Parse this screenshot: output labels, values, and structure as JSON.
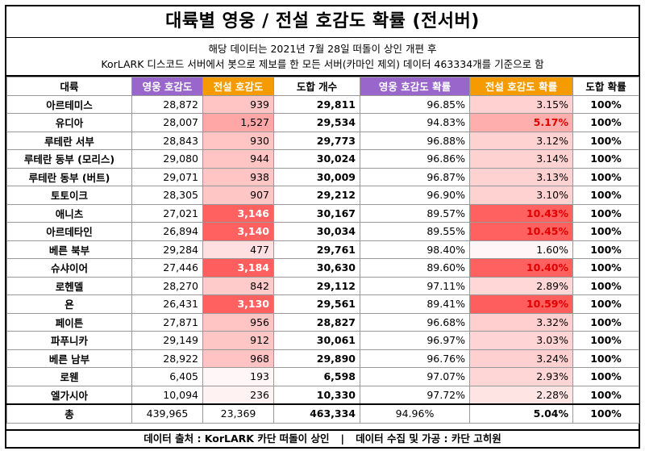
{
  "title": "대륙별 영웅 / 전설 호감도 확률 (전서버)",
  "subtitle_1": "해당 데이터는 2021년 7월 28일 떠돌이 상인 개편 후",
  "subtitle_2": "KorLARK 디스코드 서버에서 봇으로 제보를 한 모든 서버(카마인 제외) 데이터 463334개를 기준으로 함",
  "headers": {
    "region": "대륙",
    "hero_count": "영웅 호감도",
    "legend_count": "전설 호감도",
    "total": "도합 개수",
    "hero_rate": "영웅 호감도 확률",
    "legend_rate": "전설 호감도 확률",
    "total_rate": "도합 확률"
  },
  "colors": {
    "purple": "#9966cc",
    "orange": "#f59b00",
    "highlight_red": "#ff5e5e",
    "text_red": "#e00000"
  },
  "rows": [
    {
      "region": "아르테미스",
      "hero": "28,872",
      "legend": "939",
      "total": "29,811",
      "hero_rate": "96.85%",
      "legend_rate": "3.15%",
      "total_rate": "100%"
    },
    {
      "region": "유디아",
      "hero": "28,007",
      "legend": "1,527",
      "total": "29,534",
      "hero_rate": "94.83%",
      "legend_rate": "5.17%",
      "total_rate": "100%"
    },
    {
      "region": "루테란 서부",
      "hero": "28,843",
      "legend": "930",
      "total": "29,773",
      "hero_rate": "96.88%",
      "legend_rate": "3.12%",
      "total_rate": "100%"
    },
    {
      "region": "루테란 동부 (모리스)",
      "hero": "29,080",
      "legend": "944",
      "total": "30,024",
      "hero_rate": "96.86%",
      "legend_rate": "3.14%",
      "total_rate": "100%"
    },
    {
      "region": "루테란 동부 (버트)",
      "hero": "29,071",
      "legend": "938",
      "total": "30,009",
      "hero_rate": "96.87%",
      "legend_rate": "3.13%",
      "total_rate": "100%"
    },
    {
      "region": "토토이크",
      "hero": "28,305",
      "legend": "907",
      "total": "29,212",
      "hero_rate": "96.90%",
      "legend_rate": "3.10%",
      "total_rate": "100%"
    },
    {
      "region": "애니츠",
      "hero": "27,021",
      "legend": "3,146",
      "total": "30,167",
      "hero_rate": "89.57%",
      "legend_rate": "10.43%",
      "total_rate": "100%"
    },
    {
      "region": "아르데타인",
      "hero": "26,894",
      "legend": "3,140",
      "total": "30,034",
      "hero_rate": "89.55%",
      "legend_rate": "10.45%",
      "total_rate": "100%"
    },
    {
      "region": "베른 북부",
      "hero": "29,284",
      "legend": "477",
      "total": "29,761",
      "hero_rate": "98.40%",
      "legend_rate": "1.60%",
      "total_rate": "100%"
    },
    {
      "region": "슈샤이어",
      "hero": "27,446",
      "legend": "3,184",
      "total": "30,630",
      "hero_rate": "89.60%",
      "legend_rate": "10.40%",
      "total_rate": "100%"
    },
    {
      "region": "로헨델",
      "hero": "28,270",
      "legend": "842",
      "total": "29,112",
      "hero_rate": "97.11%",
      "legend_rate": "2.89%",
      "total_rate": "100%"
    },
    {
      "region": "욘",
      "hero": "26,431",
      "legend": "3,130",
      "total": "29,561",
      "hero_rate": "89.41%",
      "legend_rate": "10.59%",
      "total_rate": "100%"
    },
    {
      "region": "페이튼",
      "hero": "27,871",
      "legend": "956",
      "total": "28,827",
      "hero_rate": "96.68%",
      "legend_rate": "3.32%",
      "total_rate": "100%"
    },
    {
      "region": "파푸니카",
      "hero": "29,149",
      "legend": "912",
      "total": "30,061",
      "hero_rate": "96.97%",
      "legend_rate": "3.03%",
      "total_rate": "100%"
    },
    {
      "region": "베른 남부",
      "hero": "28,922",
      "legend": "968",
      "total": "29,890",
      "hero_rate": "96.76%",
      "legend_rate": "3.24%",
      "total_rate": "100%"
    },
    {
      "region": "로웬",
      "hero": "6,405",
      "legend": "193",
      "total": "6,598",
      "hero_rate": "97.07%",
      "legend_rate": "2.93%",
      "total_rate": "100%"
    },
    {
      "region": "엘가시아",
      "hero": "10,094",
      "legend": "236",
      "total": "10,330",
      "hero_rate": "97.72%",
      "legend_rate": "2.28%",
      "total_rate": "100%"
    }
  ],
  "total_row": {
    "region": "총",
    "hero": "439,965",
    "legend": "23,369",
    "total": "463,334",
    "hero_rate": "94.96%",
    "legend_rate": "5.04%",
    "total_rate": "100%"
  },
  "footer": {
    "source": "데이터 출처 : KorLARK 카단 떠돌이 상인",
    "separator": "|",
    "processing": "데이터 수집 및 가공 : 카단 고히원"
  }
}
